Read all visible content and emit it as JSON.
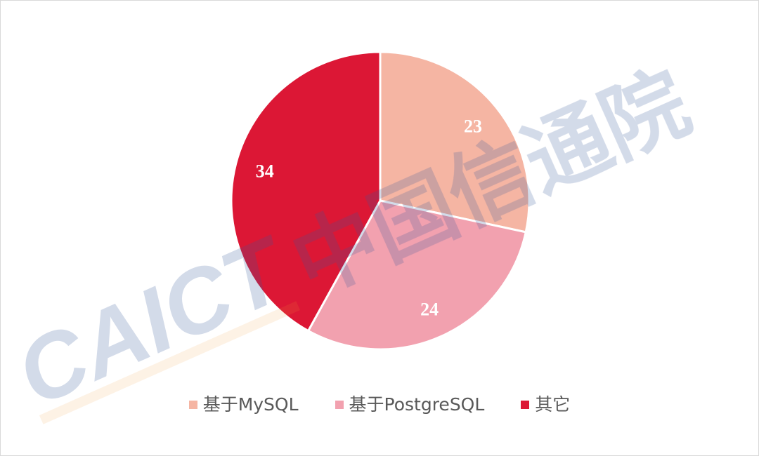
{
  "chart_data": {
    "type": "pie",
    "categories": [
      "基于MySQL",
      "基于PostgreSQL",
      "其它"
    ],
    "values": [
      23,
      24,
      34
    ],
    "colors": [
      "#F5B5A3",
      "#F2A1AF",
      "#DC1735"
    ],
    "start_angle": "12 o'clock",
    "direction": "clockwise",
    "data_labels": [
      "23",
      "24",
      "34"
    ],
    "legend_position": "bottom"
  },
  "watermark": {
    "text_latin": "CAICT",
    "text_cn": "中国信通院"
  }
}
